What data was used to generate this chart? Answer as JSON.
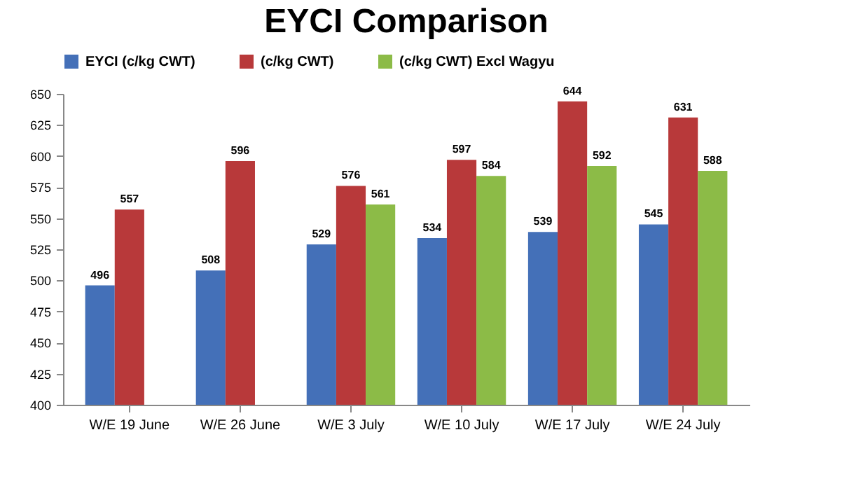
{
  "chart_data": {
    "type": "bar",
    "title": "EYCI Comparison",
    "categories": [
      "W/E 19 June",
      "W/E 26 June",
      "W/E 3 July",
      "W/E 10 July",
      "W/E 17 July",
      "W/E 24 July"
    ],
    "series": [
      {
        "name": "EYCI (c/kg CWT)",
        "color": "#4470b8",
        "values": [
          496,
          508,
          529,
          534,
          539,
          545
        ]
      },
      {
        "name": "(c/kg CWT)",
        "color": "#b8393a",
        "values": [
          557,
          596,
          576,
          597,
          644,
          631
        ]
      },
      {
        "name": "(c/kg CWT) Excl Wagyu",
        "color": "#8cbb47",
        "values": [
          null,
          null,
          561,
          584,
          592,
          588
        ]
      }
    ],
    "ylim": [
      400,
      650
    ],
    "yticks": [
      400,
      425,
      450,
      475,
      500,
      525,
      550,
      575,
      600,
      625,
      650
    ],
    "grid": false,
    "legend": "top",
    "data_labels": true
  }
}
